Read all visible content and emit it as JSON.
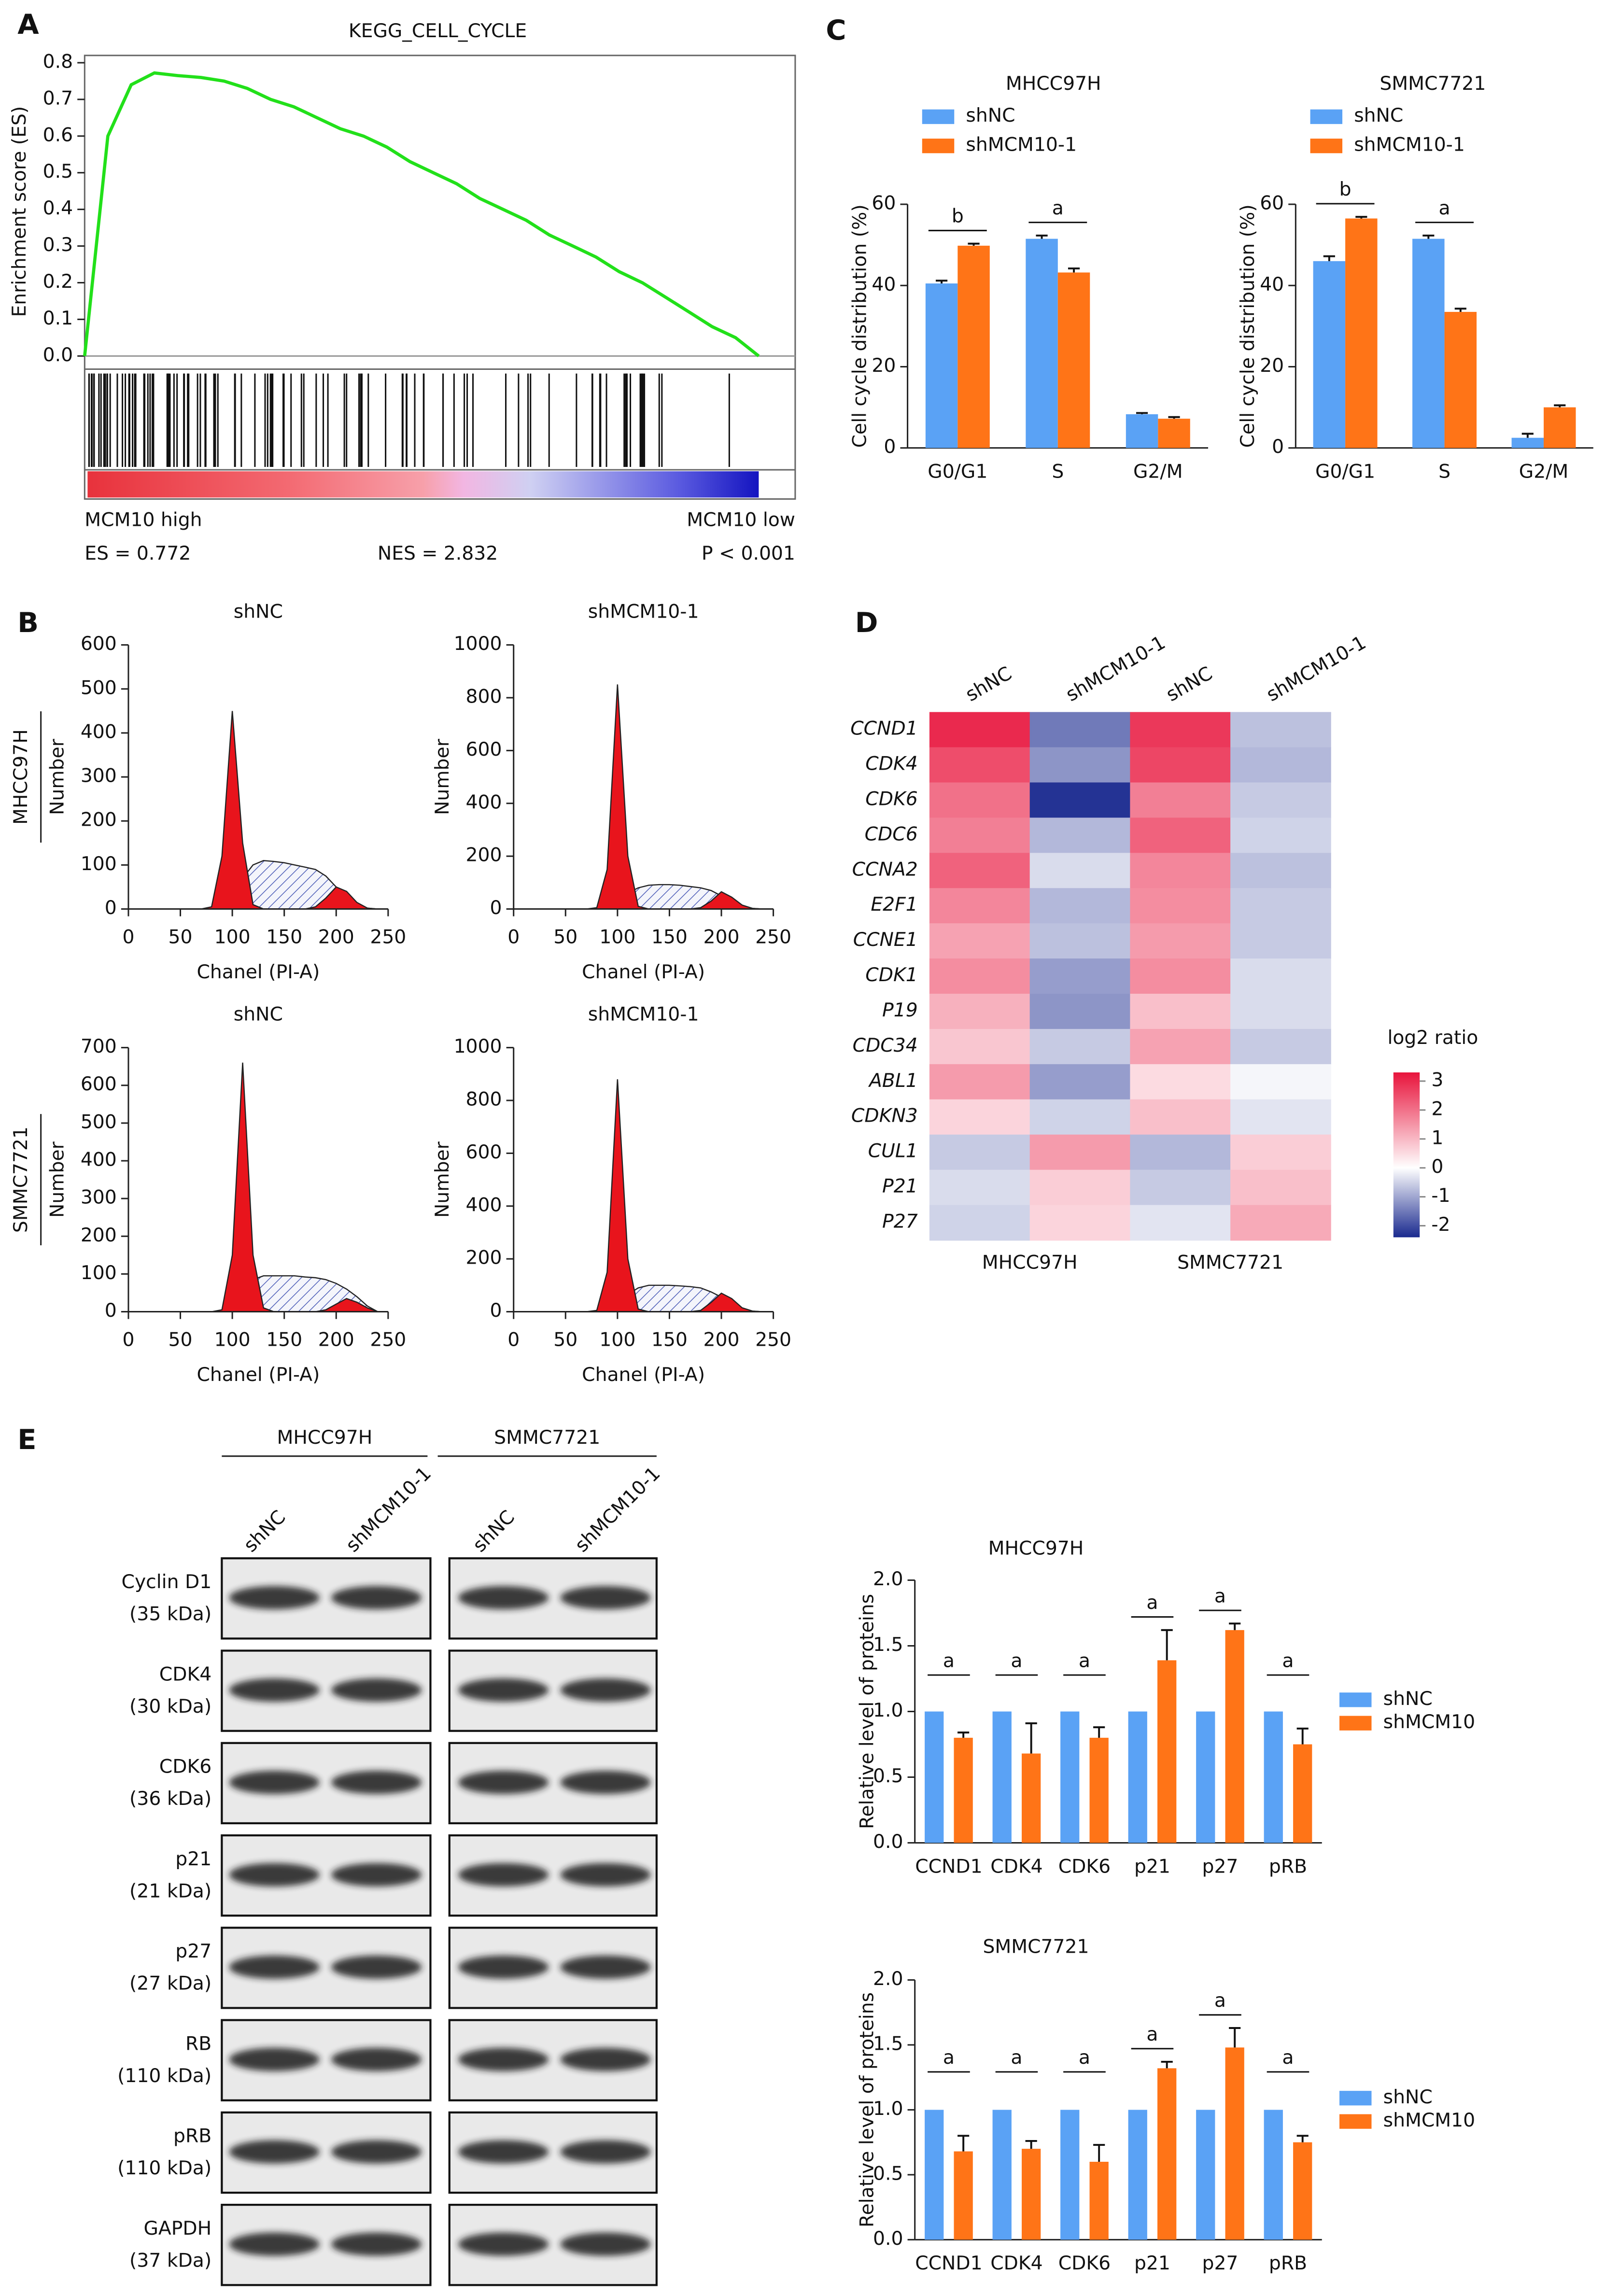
{
  "panels": [
    "A",
    "B",
    "C",
    "D",
    "E"
  ],
  "blot": {
    "groups": [
      "MHCC97H",
      "SMMC7721"
    ],
    "lanes": [
      "shNC",
      "shMCM10-1",
      "shNC",
      "shMCM10-1"
    ],
    "rows": [
      {
        "name": "Cyclin D1",
        "size": "(35 kDa)"
      },
      {
        "name": "CDK4",
        "size": "(30 kDa)"
      },
      {
        "name": "CDK6",
        "size": "(36 kDa)"
      },
      {
        "name": "p21",
        "size": "(21 kDa)"
      },
      {
        "name": "p27",
        "size": "(27 kDa)"
      },
      {
        "name": "RB",
        "size": "(110 kDa)"
      },
      {
        "name": "pRB",
        "size": "(110 kDa)"
      },
      {
        "name": "GAPDH",
        "size": "(37 kDa)"
      }
    ]
  },
  "chart_data": [
    {
      "type": "line",
      "title": "KEGG_CELL_CYCLE",
      "y_label": "Enrichment score (ES)",
      "color": "#22e01a",
      "values": [
        0,
        0.6,
        0.74,
        0.772,
        0.765,
        0.76,
        0.75,
        0.73,
        0.7,
        0.68,
        0.65,
        0.62,
        0.6,
        0.57,
        0.53,
        0.5,
        0.47,
        0.43,
        0.4,
        0.37,
        0.33,
        0.3,
        0.27,
        0.23,
        0.2,
        0.16,
        0.12,
        0.08,
        0.05,
        0
      ],
      "ylim": [
        0,
        0.8
      ],
      "yticks": [
        {
          "value": 0,
          "label": "0.0"
        },
        0.1,
        0.2,
        0.3,
        0.4,
        0.5,
        0.6,
        0.7,
        0.8
      ],
      "left_label": "MCM10 high",
      "right_label": "MCM10 low",
      "es": "ES = 0.772",
      "nes": "NES = 2.832",
      "p": "P < 0.001"
    },
    {
      "type": "bar",
      "title": "MHCC97H",
      "y_label": "Cell cycle distribution (%)",
      "categories": [
        "G0/G1",
        "S",
        "G2/M"
      ],
      "series": [
        {
          "name": "shNC",
          "color": "#5aa2f5",
          "values": [
            40.5,
            51.5,
            8.3
          ],
          "errors": [
            0.7,
            0.8,
            0.3
          ]
        },
        {
          "name": "shMCM10-1",
          "color": "#ff7417",
          "values": [
            49.8,
            43.2,
            7.2
          ],
          "errors": [
            0.5,
            1,
            0.4
          ]
        }
      ],
      "annotations": [
        "b",
        "a",
        null
      ],
      "ylim": [
        0,
        60
      ],
      "yticks": [
        0,
        20,
        40,
        60
      ],
      "legend": "top-left"
    },
    {
      "type": "bar",
      "title": "SMMC7721",
      "y_label": "Cell cycle distribution (%)",
      "categories": [
        "G0/G1",
        "S",
        "G2/M"
      ],
      "series": [
        {
          "name": "shNC",
          "color": "#5aa2f5",
          "values": [
            46,
            51.5,
            2.5
          ],
          "errors": [
            1.2,
            0.8,
            1
          ]
        },
        {
          "name": "shMCM10-1",
          "color": "#ff7417",
          "values": [
            56.5,
            33.5,
            10
          ],
          "errors": [
            0.4,
            0.8,
            0.5
          ]
        }
      ],
      "annotations": [
        "b",
        "a",
        null
      ],
      "ylim": [
        0,
        60
      ],
      "yticks": [
        0,
        20,
        40,
        60
      ],
      "legend": "top-left"
    },
    {
      "type": "area",
      "title": "shNC",
      "row_label": "MHCC97H",
      "x_label": "Chanel (PI-A)",
      "y_label": "Number",
      "x": [
        60,
        70,
        80,
        90,
        100,
        110,
        120,
        130,
        140,
        150,
        160,
        170,
        180,
        190,
        200,
        210,
        220,
        230,
        240,
        250
      ],
      "series": [
        {
          "color": "#e8141c",
          "values": [
            0,
            0,
            5,
            120,
            450,
            150,
            10,
            0,
            0,
            0,
            0,
            0,
            5,
            25,
            50,
            40,
            15,
            2,
            0,
            0
          ]
        },
        {
          "color": "#4f5fb8",
          "fill": "hatch",
          "values": [
            0,
            0,
            0,
            5,
            30,
            70,
            100,
            110,
            108,
            105,
            100,
            95,
            90,
            75,
            50,
            25,
            10,
            2,
            0,
            0
          ]
        }
      ],
      "xlim": [
        0,
        250
      ],
      "xticks": [
        0,
        50,
        100,
        150,
        200,
        250
      ],
      "ylim": [
        0,
        600
      ],
      "yticks": [
        0,
        100,
        200,
        300,
        400,
        500,
        600
      ]
    },
    {
      "type": "area",
      "title": "shMCM10-1",
      "x_label": "Chanel (PI-A)",
      "y_label": "Number",
      "x": [
        60,
        70,
        80,
        90,
        100,
        110,
        120,
        130,
        140,
        150,
        160,
        170,
        180,
        190,
        200,
        210,
        220,
        230,
        240,
        250
      ],
      "series": [
        {
          "color": "#e8141c",
          "values": [
            0,
            0,
            5,
            150,
            850,
            200,
            10,
            0,
            0,
            0,
            0,
            0,
            5,
            30,
            65,
            45,
            15,
            2,
            0,
            0
          ]
        },
        {
          "color": "#4f5fb8",
          "fill": "hatch",
          "values": [
            0,
            0,
            0,
            5,
            30,
            60,
            80,
            90,
            92,
            92,
            90,
            85,
            80,
            70,
            50,
            25,
            10,
            2,
            0,
            0
          ]
        }
      ],
      "xlim": [
        0,
        250
      ],
      "xticks": [
        0,
        50,
        100,
        150,
        200,
        250
      ],
      "ylim": [
        0,
        1000
      ],
      "yticks": [
        0,
        200,
        400,
        600,
        800,
        1000
      ]
    },
    {
      "type": "area",
      "title": "shNC",
      "row_label": "SMMC7721",
      "x_label": "Chanel (PI-A)",
      "y_label": "Number",
      "x": [
        60,
        70,
        80,
        90,
        100,
        110,
        120,
        130,
        140,
        150,
        160,
        170,
        180,
        190,
        200,
        210,
        220,
        230,
        240,
        250
      ],
      "series": [
        {
          "color": "#e8141c",
          "values": [
            0,
            0,
            0,
            5,
            150,
            660,
            150,
            10,
            0,
            0,
            0,
            0,
            0,
            5,
            20,
            35,
            25,
            10,
            0,
            0
          ]
        },
        {
          "color": "#4f5fb8",
          "fill": "hatch",
          "values": [
            0,
            0,
            0,
            0,
            10,
            40,
            85,
            95,
            95,
            95,
            95,
            92,
            90,
            85,
            75,
            60,
            40,
            15,
            0,
            0
          ]
        }
      ],
      "xlim": [
        0,
        250
      ],
      "xticks": [
        0,
        50,
        100,
        150,
        200,
        250
      ],
      "ylim": [
        0,
        700
      ],
      "yticks": [
        0,
        100,
        200,
        300,
        400,
        500,
        600,
        700
      ]
    },
    {
      "type": "area",
      "title": "shMCM10-1",
      "x_label": "Chanel (PI-A)",
      "y_label": "Number",
      "x": [
        60,
        70,
        80,
        90,
        100,
        110,
        120,
        130,
        140,
        150,
        160,
        170,
        180,
        190,
        200,
        210,
        220,
        230,
        240,
        250
      ],
      "series": [
        {
          "color": "#e8141c",
          "values": [
            0,
            0,
            5,
            150,
            880,
            200,
            10,
            0,
            0,
            0,
            0,
            0,
            5,
            35,
            70,
            50,
            15,
            2,
            0,
            0
          ]
        },
        {
          "color": "#4f5fb8",
          "fill": "hatch",
          "values": [
            0,
            0,
            0,
            5,
            30,
            65,
            90,
            100,
            100,
            100,
            98,
            95,
            90,
            75,
            55,
            30,
            10,
            2,
            0,
            0
          ]
        }
      ],
      "xlim": [
        0,
        250
      ],
      "xticks": [
        0,
        50,
        100,
        150,
        200,
        250
      ],
      "ylim": [
        0,
        1000
      ],
      "yticks": [
        0,
        200,
        400,
        600,
        800,
        1000
      ]
    },
    {
      "type": "heatmap",
      "columns": [
        "shNC",
        "shMCM10-1",
        "shNC",
        "shMCM10-1"
      ],
      "groups": [
        "MHCC97H",
        "SMMC7721"
      ],
      "rows": [
        "CCND1",
        "CDK4",
        "CDK6",
        "CDC6",
        "CCNA2",
        "E2F1",
        "CCNE1",
        "CDK1",
        "P19",
        "CDC34",
        "ABL1",
        "CDKN3",
        "CUL1",
        "P21",
        "P27"
      ],
      "values": [
        [
          3,
          -1.5,
          2.8,
          -0.7
        ],
        [
          2.5,
          -1.2,
          2.6,
          -0.8
        ],
        [
          2,
          -2.3,
          1.8,
          -0.6
        ],
        [
          1.8,
          -0.8,
          2.2,
          -0.5
        ],
        [
          2.2,
          -0.4,
          1.7,
          -0.7
        ],
        [
          1.7,
          -0.8,
          1.6,
          -0.6
        ],
        [
          1.3,
          -0.7,
          1.4,
          -0.6
        ],
        [
          1.6,
          -1.1,
          1.6,
          -0.4
        ],
        [
          1.1,
          -1.2,
          0.9,
          -0.4
        ],
        [
          0.8,
          -0.6,
          1.3,
          -0.6
        ],
        [
          1.4,
          -1.1,
          0.5,
          -0.1
        ],
        [
          0.6,
          -0.5,
          0.9,
          -0.3
        ],
        [
          -0.6,
          1.4,
          -0.8,
          0.7
        ],
        [
          -0.4,
          0.7,
          -0.6,
          0.9
        ],
        [
          -0.5,
          0.6,
          -0.3,
          1.2
        ]
      ],
      "colorbar_title": "log2 ratio",
      "colorbar_ticks": [
        3,
        2,
        1,
        0,
        -1,
        -2
      ],
      "clim": [
        -2.4,
        3.3
      ],
      "colors": [
        "#1a2a8f",
        "#ffffff",
        "#e8143c"
      ]
    },
    {
      "type": "bar",
      "title": "MHCC97H",
      "y_label": "Relative level of proteins",
      "categories": [
        "CCND1",
        "CDK4",
        "CDK6",
        "p21",
        "p27",
        "pRB"
      ],
      "series": [
        {
          "name": "shNC",
          "color": "#5aa2f5",
          "values": [
            1,
            1,
            1,
            1,
            1,
            1
          ]
        },
        {
          "name": "shMCM10",
          "color": "#ff7417",
          "values": [
            0.8,
            0.68,
            0.8,
            1.39,
            1.62,
            0.75
          ],
          "errors": [
            0.04,
            0.23,
            0.08,
            0.23,
            0.05,
            0.12
          ]
        }
      ],
      "annotations": [
        "a",
        "a",
        "a",
        "a",
        "a",
        "a"
      ],
      "ylim": [
        0,
        2
      ],
      "yticks": [
        {
          "value": 0,
          "label": "0.0"
        },
        0.5,
        {
          "value": 1,
          "label": "1.0"
        },
        1.5,
        {
          "value": 2,
          "label": "2.0"
        }
      ],
      "legend": "right"
    },
    {
      "type": "bar",
      "title": "SMMC7721",
      "y_label": "Relative level of proteins",
      "categories": [
        "CCND1",
        "CDK4",
        "CDK6",
        "p21",
        "p27",
        "pRB"
      ],
      "series": [
        {
          "name": "shNC",
          "color": "#5aa2f5",
          "values": [
            1,
            1,
            1,
            1,
            1,
            1
          ]
        },
        {
          "name": "shMCM10",
          "color": "#ff7417",
          "values": [
            0.68,
            0.7,
            0.6,
            1.32,
            1.48,
            0.75
          ],
          "errors": [
            0.12,
            0.06,
            0.13,
            0.05,
            0.15,
            0.05
          ]
        }
      ],
      "annotations": [
        "a",
        "a",
        "a",
        "a",
        "a",
        "a"
      ],
      "ylim": [
        0,
        2
      ],
      "yticks": [
        {
          "value": 0,
          "label": "0.0"
        },
        0.5,
        {
          "value": 1,
          "label": "1.0"
        },
        1.5,
        {
          "value": 2,
          "label": "2.0"
        }
      ],
      "legend": "right"
    }
  ]
}
